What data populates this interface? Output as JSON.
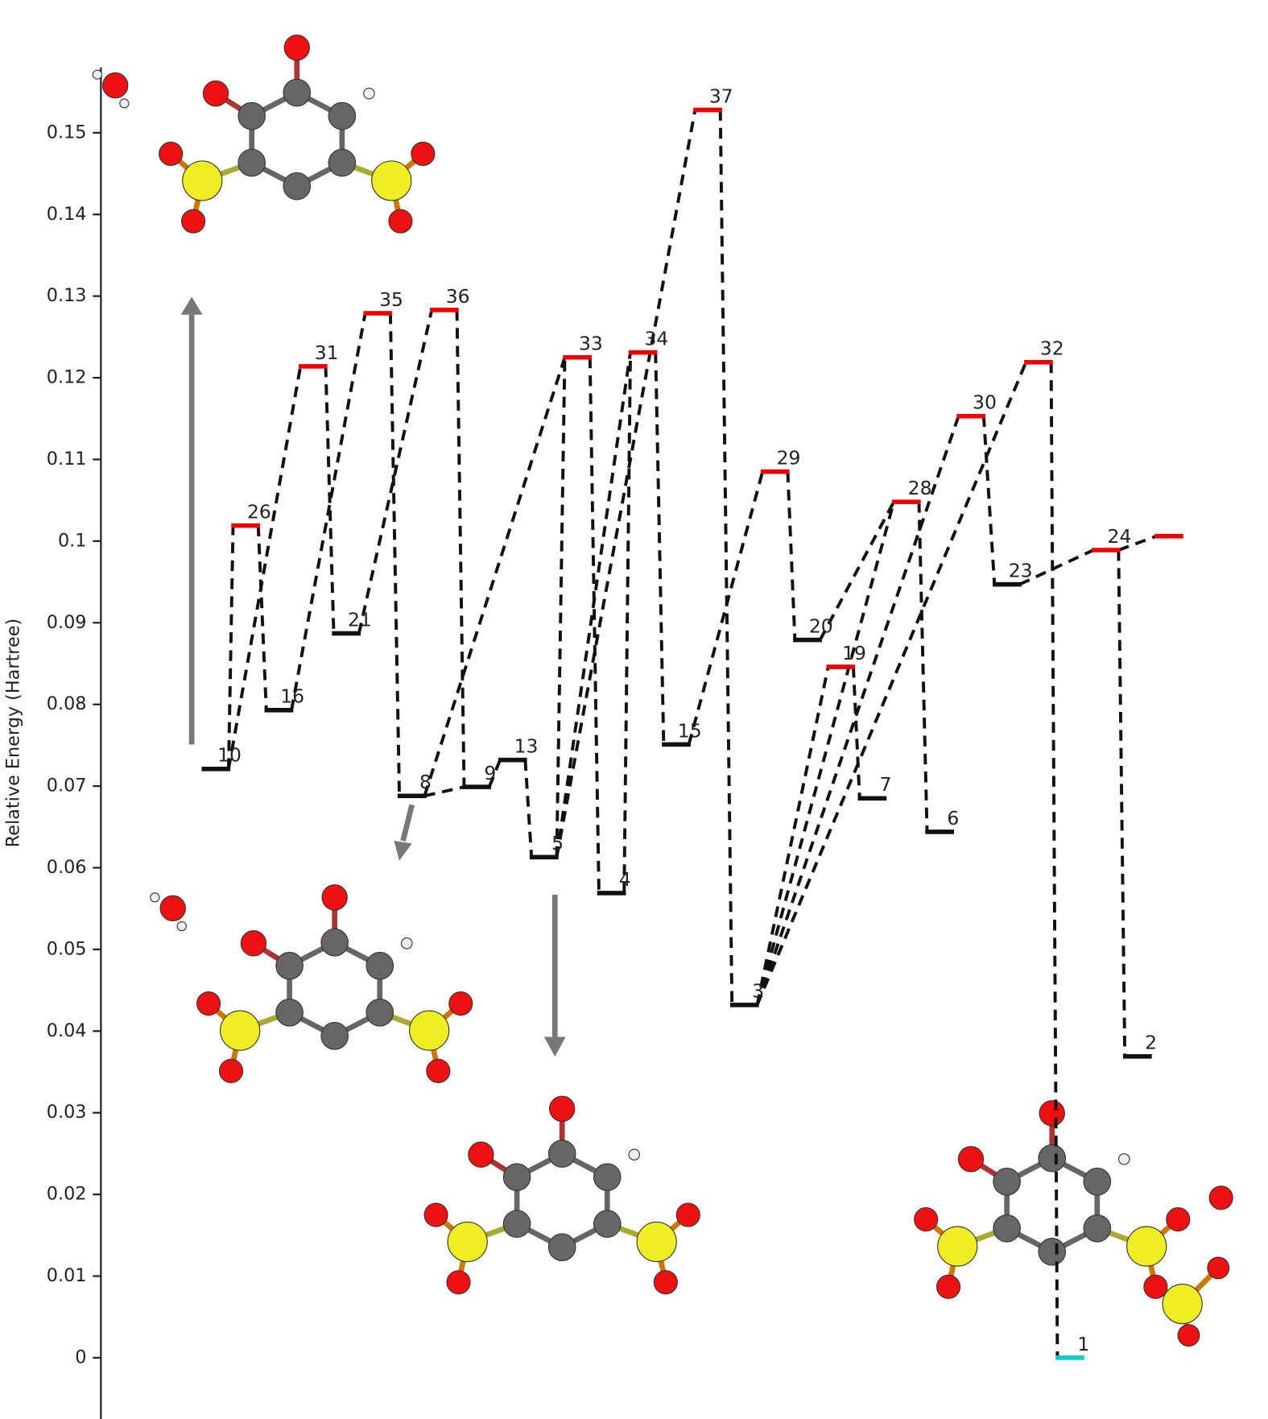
{
  "chart_data": {
    "type": "energy-levels",
    "y_label": "Relative Energy (Hartree)",
    "categories": [
      "10",
      "26",
      "16",
      "31",
      "21",
      "35",
      "8",
      "36",
      "9",
      "13",
      "5",
      "33",
      "4",
      "34",
      "15",
      "37",
      "3",
      "29",
      "20",
      "19",
      "7",
      "28",
      "6",
      "30",
      "23",
      "32",
      "1",
      "24",
      "2",
      null
    ],
    "values": [
      0.0721,
      0.1019,
      0.0793,
      0.1214,
      0.0887,
      0.1279,
      0.0688,
      0.1283,
      0.0699,
      0.0732,
      0.0613,
      0.1225,
      0.0569,
      0.1231,
      0.0751,
      0.1528,
      0.0432,
      0.1085,
      0.0879,
      0.0846,
      0.0685,
      0.1048,
      0.0644,
      0.1153,
      0.0947,
      0.1219,
      0.0,
      0.0989,
      0.0369,
      0.1006
    ],
    "colors": [
      "#111",
      "#e00",
      "#111",
      "#e00",
      "#111",
      "#e00",
      "#111",
      "#e00",
      "#111",
      "#111",
      "#111",
      "#e00",
      "#111",
      "#e00",
      "#111",
      "#e00",
      "#111",
      "#e00",
      "#111",
      "#e00",
      "#111",
      "#e00",
      "#111",
      "#e00",
      "#111",
      "#e00",
      "#1cc",
      "#e00",
      "#111",
      "#e00"
    ],
    "ylim": [
      -0.0075,
      0.158
    ],
    "yticks": [
      0,
      0.01,
      0.02,
      0.03,
      0.04,
      0.05,
      0.06,
      0.07,
      0.08,
      0.09,
      0.1,
      0.11,
      0.12,
      0.13,
      0.14,
      0.15
    ]
  }
}
